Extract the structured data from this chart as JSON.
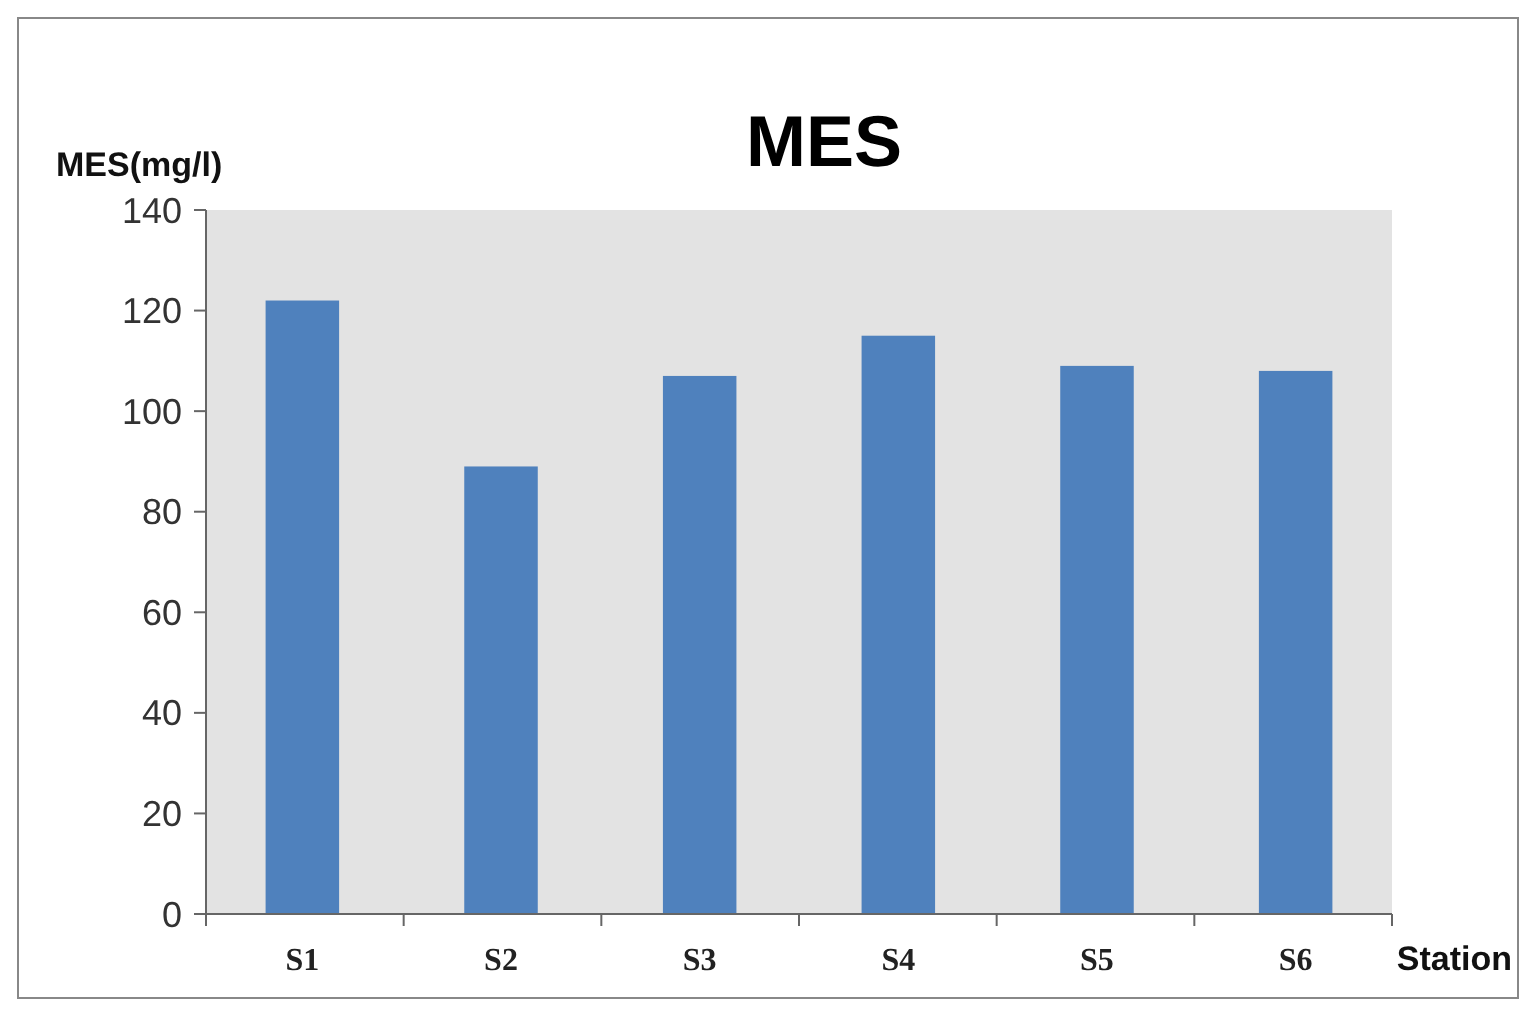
{
  "chart_data": {
    "type": "bar",
    "title": "MES",
    "ylabel": "MES(mg/l)",
    "xlabel": "Station",
    "categories": [
      "S1",
      "S2",
      "S3",
      "S4",
      "S5",
      "S6"
    ],
    "values": [
      122,
      89,
      107,
      115,
      109,
      108
    ],
    "color": "#4f81bd",
    "ylim": [
      0,
      140
    ],
    "yticks": [
      0,
      20,
      40,
      60,
      80,
      100,
      120,
      140
    ],
    "grid": false
  }
}
